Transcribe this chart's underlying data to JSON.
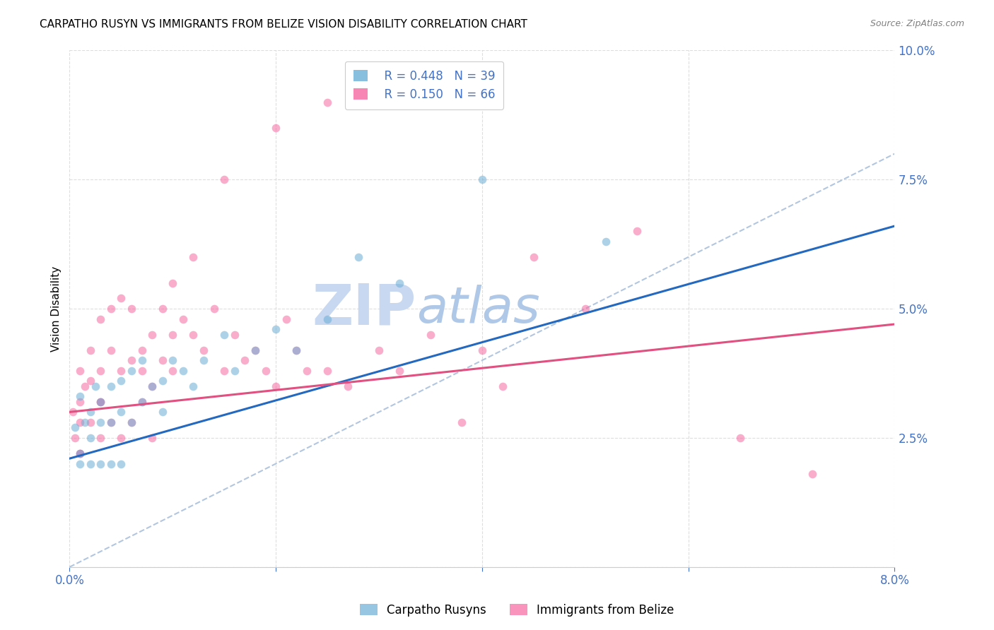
{
  "title": "CARPATHO RUSYN VS IMMIGRANTS FROM BELIZE VISION DISABILITY CORRELATION CHART",
  "source": "Source: ZipAtlas.com",
  "ylabel": "Vision Disability",
  "x_min": 0.0,
  "x_max": 0.08,
  "y_min": 0.0,
  "y_max": 0.1,
  "blue_color": "#6baed6",
  "pink_color": "#f768a1",
  "blue_line_color": "#2469c0",
  "pink_line_color": "#e05080",
  "axis_tick_color": "#4472c4",
  "grid_color": "#d0d0d0",
  "background_color": "#ffffff",
  "scatter_alpha": 0.55,
  "scatter_size": 70,
  "title_fontsize": 11,
  "watermark_zip_color": "#c8d8f0",
  "watermark_atlas_color": "#b0c8e8",
  "blue_line_x0": 0.0,
  "blue_line_x1": 0.08,
  "blue_line_y0": 0.021,
  "blue_line_y1": 0.066,
  "pink_line_x0": 0.0,
  "pink_line_x1": 0.08,
  "pink_line_y0": 0.03,
  "pink_line_y1": 0.047,
  "diag_line_x0": 0.0,
  "diag_line_x1": 0.08,
  "diag_line_y0": 0.0,
  "diag_line_y1": 0.08,
  "blue_scatter_x": [
    0.0005,
    0.001,
    0.001,
    0.0015,
    0.002,
    0.002,
    0.0025,
    0.003,
    0.003,
    0.004,
    0.004,
    0.005,
    0.005,
    0.006,
    0.006,
    0.007,
    0.007,
    0.008,
    0.009,
    0.009,
    0.01,
    0.011,
    0.012,
    0.013,
    0.015,
    0.016,
    0.018,
    0.02,
    0.022,
    0.025,
    0.028,
    0.032,
    0.04,
    0.052,
    0.001,
    0.002,
    0.003,
    0.004,
    0.005
  ],
  "blue_scatter_y": [
    0.027,
    0.022,
    0.033,
    0.028,
    0.03,
    0.025,
    0.035,
    0.032,
    0.028,
    0.035,
    0.028,
    0.036,
    0.03,
    0.038,
    0.028,
    0.04,
    0.032,
    0.035,
    0.036,
    0.03,
    0.04,
    0.038,
    0.035,
    0.04,
    0.045,
    0.038,
    0.042,
    0.046,
    0.042,
    0.048,
    0.06,
    0.055,
    0.075,
    0.063,
    0.02,
    0.02,
    0.02,
    0.02,
    0.02
  ],
  "pink_scatter_x": [
    0.0003,
    0.0005,
    0.001,
    0.001,
    0.001,
    0.0015,
    0.002,
    0.002,
    0.003,
    0.003,
    0.003,
    0.004,
    0.004,
    0.005,
    0.005,
    0.006,
    0.006,
    0.007,
    0.007,
    0.008,
    0.008,
    0.009,
    0.009,
    0.01,
    0.01,
    0.011,
    0.012,
    0.013,
    0.014,
    0.015,
    0.016,
    0.017,
    0.018,
    0.019,
    0.02,
    0.021,
    0.022,
    0.023,
    0.025,
    0.027,
    0.03,
    0.032,
    0.035,
    0.038,
    0.04,
    0.042,
    0.045,
    0.05,
    0.055,
    0.065,
    0.001,
    0.001,
    0.002,
    0.003,
    0.003,
    0.004,
    0.005,
    0.006,
    0.007,
    0.008,
    0.01,
    0.012,
    0.015,
    0.02,
    0.025,
    0.072
  ],
  "pink_scatter_y": [
    0.03,
    0.025,
    0.038,
    0.032,
    0.022,
    0.035,
    0.042,
    0.036,
    0.048,
    0.038,
    0.032,
    0.05,
    0.042,
    0.052,
    0.038,
    0.04,
    0.05,
    0.038,
    0.042,
    0.045,
    0.035,
    0.05,
    0.04,
    0.045,
    0.038,
    0.048,
    0.045,
    0.042,
    0.05,
    0.038,
    0.045,
    0.04,
    0.042,
    0.038,
    0.035,
    0.048,
    0.042,
    0.038,
    0.038,
    0.035,
    0.042,
    0.038,
    0.045,
    0.028,
    0.042,
    0.035,
    0.06,
    0.05,
    0.065,
    0.025,
    0.028,
    0.022,
    0.028,
    0.025,
    0.032,
    0.028,
    0.025,
    0.028,
    0.032,
    0.025,
    0.055,
    0.06,
    0.075,
    0.085,
    0.09,
    0.018
  ]
}
